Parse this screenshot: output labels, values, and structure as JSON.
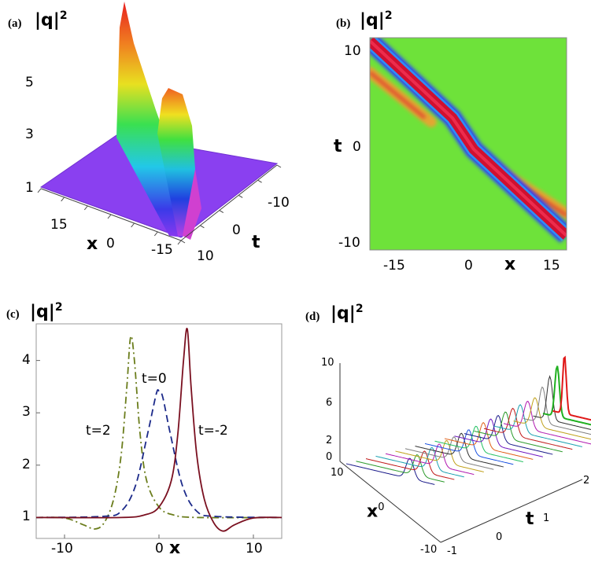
{
  "panels": {
    "a": {
      "label": "(a)",
      "ytitle": "|q|",
      "ytitle_sup": "2",
      "zticks": [
        "1",
        "3",
        "5"
      ],
      "xlabel": "x",
      "xticks": [
        "15",
        "0",
        "-15"
      ],
      "tlabel": "t",
      "tticks": [
        "-10",
        "0",
        "10"
      ]
    },
    "b": {
      "label": "(b)",
      "title": "|q|",
      "title_sup": "2",
      "ylabel": "t",
      "yticks": [
        "10",
        "0",
        "-10"
      ],
      "xlabel": "x",
      "xticks": [
        "-15",
        "0",
        "15"
      ]
    },
    "c": {
      "label": "(c)",
      "ylabel": "|q|",
      "ylabel_sup": "2",
      "xlabel": "x",
      "yticks": [
        "1",
        "2",
        "3",
        "4"
      ],
      "xticks": [
        "-10",
        "0",
        "10"
      ],
      "annotations": [
        "t=2",
        "t=0",
        "t=-2"
      ]
    },
    "d": {
      "label": "(d)",
      "ylabel": "|q|",
      "ylabel_sup": "2",
      "zticks": [
        "10",
        "6",
        "2",
        "0"
      ],
      "xlabel": "x",
      "xsup": "0",
      "xticks": [
        "10",
        "-10"
      ],
      "tlabel": "t",
      "tticks": [
        "-1",
        "0",
        "1",
        "2"
      ]
    }
  },
  "chart_data": [
    {
      "type": "surface",
      "panel": "a",
      "description_axes": [
        "x",
        "t",
        "|q|^2"
      ],
      "zlim": [
        0,
        5.5
      ],
      "xlim": [
        -15,
        15
      ],
      "tlim": [
        -10,
        10
      ],
      "background_level": 1
    },
    {
      "type": "heatmap",
      "panel": "b",
      "xlim": [
        -18,
        18
      ],
      "ylim": [
        -11,
        11
      ],
      "colors": {
        "background": "#6ee23a",
        "peak": "#cc1030",
        "dip": "#1a4fff"
      }
    },
    {
      "type": "line",
      "panel": "c",
      "xlim": [
        -13,
        13
      ],
      "ylim": [
        0.6,
        4.7
      ],
      "series": [
        {
          "name": "t=2",
          "color": "#6b7d1c",
          "dash": "dashdot",
          "points": [
            [
              -13,
              1
            ],
            [
              -10,
              0.99
            ],
            [
              -8,
              0.86
            ],
            [
              -6.8,
              0.78
            ],
            [
              -5.8,
              0.9
            ],
            [
              -4.8,
              1.35
            ],
            [
              -4,
              2.2
            ],
            [
              -3.4,
              3.5
            ],
            [
              -3,
              4.45
            ],
            [
              -2.6,
              4.0
            ],
            [
              -2,
              2.6
            ],
            [
              -1.3,
              1.7
            ],
            [
              0,
              1.2
            ],
            [
              1.5,
              1.05
            ],
            [
              4,
              1.0
            ],
            [
              13,
              1
            ]
          ]
        },
        {
          "name": "t=0",
          "color": "#1c2a8a",
          "dash": "dash",
          "points": [
            [
              -13,
              1
            ],
            [
              -6,
              1.02
            ],
            [
              -4,
              1.12
            ],
            [
              -2.5,
              1.6
            ],
            [
              -1.2,
              2.6
            ],
            [
              -0.3,
              3.35
            ],
            [
              0,
              3.42
            ],
            [
              0.4,
              3.3
            ],
            [
              1.2,
              2.6
            ],
            [
              2.5,
              1.6
            ],
            [
              4,
              1.12
            ],
            [
              6,
              1.02
            ],
            [
              13,
              1
            ]
          ]
        },
        {
          "name": "t=-2",
          "color": "#7a1020",
          "dash": "solid",
          "points": [
            [
              -13,
              1
            ],
            [
              -4,
              1.0
            ],
            [
              -1.5,
              1.05
            ],
            [
              0,
              1.2
            ],
            [
              1.3,
              1.7
            ],
            [
              2,
              2.6
            ],
            [
              2.6,
              4.0
            ],
            [
              3,
              4.6
            ],
            [
              3.4,
              3.5
            ],
            [
              4,
              2.2
            ],
            [
              4.8,
              1.35
            ],
            [
              5.8,
              0.9
            ],
            [
              6.8,
              0.74
            ],
            [
              8,
              0.86
            ],
            [
              10,
              0.99
            ],
            [
              13,
              1
            ]
          ]
        }
      ]
    },
    {
      "type": "waterfall",
      "panel": "d",
      "zlim": [
        0,
        10
      ],
      "xlim": [
        -10,
        10
      ],
      "tlim": [
        -1,
        2
      ]
    }
  ]
}
